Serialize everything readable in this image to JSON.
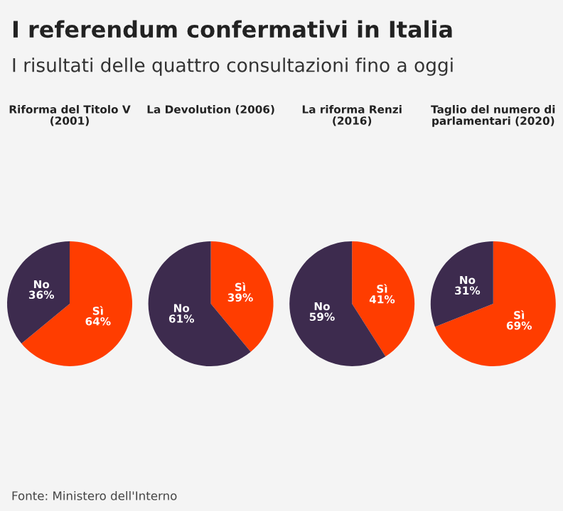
{
  "chart_data": [
    {
      "type": "other",
      "title": "I referendum confermativi in Italia",
      "subtitle": "I risultati delle quattro consultazioni fino a oggi",
      "annotations": [
        "Fonte: Ministero dell'Interno"
      ]
    },
    {
      "type": "pie",
      "title": "Riforma del Titolo V\n(2001)",
      "categories": [
        "Sì",
        "No"
      ],
      "values": [
        64,
        36
      ],
      "value_labels": [
        "64%",
        "36%"
      ],
      "colors": [
        "#ff3d00",
        "#3d2b4e"
      ]
    },
    {
      "type": "pie",
      "title": "La Devolution (2006)",
      "categories": [
        "Sì",
        "No"
      ],
      "values": [
        39,
        61
      ],
      "value_labels": [
        "39%",
        "61%"
      ],
      "colors": [
        "#ff3d00",
        "#3d2b4e"
      ]
    },
    {
      "type": "pie",
      "title": "La riforma Renzi\n(2016)",
      "categories": [
        "Sì",
        "No"
      ],
      "values": [
        41,
        59
      ],
      "value_labels": [
        "41%",
        "59%"
      ],
      "colors": [
        "#ff3d00",
        "#3d2b4e"
      ]
    },
    {
      "type": "pie",
      "title": "Taglio del numero di\nparlamentari (2020)",
      "categories": [
        "Sì",
        "No"
      ],
      "values": [
        69,
        31
      ],
      "value_labels": [
        "69%",
        "31%"
      ],
      "colors": [
        "#ff3d00",
        "#3d2b4e"
      ]
    }
  ]
}
